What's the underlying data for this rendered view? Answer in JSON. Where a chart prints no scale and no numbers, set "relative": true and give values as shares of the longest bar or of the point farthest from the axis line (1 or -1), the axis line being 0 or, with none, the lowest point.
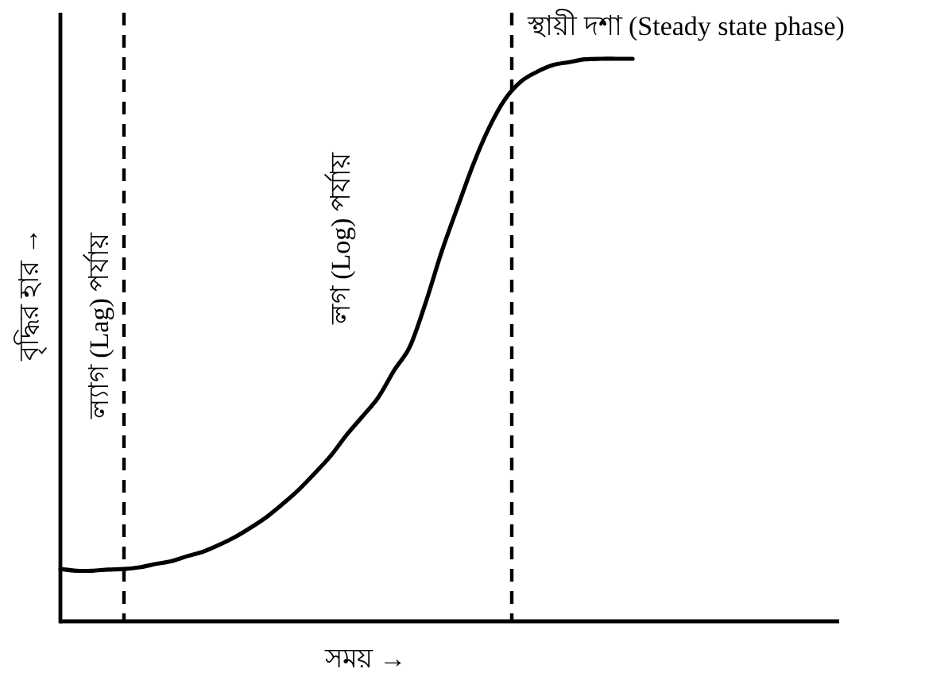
{
  "chart_data": {
    "type": "line",
    "relative": true,
    "xlabel": "সময় →",
    "ylabel": "বৃদ্ধির হার →",
    "categories": [
      null,
      null,
      null,
      null,
      null,
      null,
      null,
      null,
      null,
      null,
      null,
      null,
      null,
      null,
      null,
      null,
      null,
      null,
      null,
      null,
      null,
      null,
      null,
      null,
      null,
      null,
      null,
      null,
      null,
      null,
      null,
      null,
      null,
      null,
      null,
      null,
      null,
      null,
      null,
      null,
      null,
      null,
      null,
      null,
      null,
      null,
      null,
      null,
      null,
      null
    ],
    "values": [
      0.093,
      0.09,
      0.09,
      0.092,
      0.093,
      0.096,
      0.102,
      0.107,
      0.116,
      0.124,
      0.136,
      0.15,
      0.167,
      0.186,
      0.209,
      0.234,
      0.263,
      0.294,
      0.331,
      0.364,
      0.398,
      0.446,
      0.489,
      0.568,
      0.658,
      0.737,
      0.814,
      0.879,
      0.929,
      0.96,
      0.977,
      0.989,
      0.994,
      0.999,
      1,
      1,
      1,
      null,
      null,
      null,
      null,
      null,
      null,
      null,
      null,
      null,
      null,
      null,
      null,
      null
    ],
    "color": "#000000",
    "line_style": "solid",
    "marker": "none",
    "annotations": [
      "ল্যাগ (Lag) পর্যায়",
      "লগ (Log) পর্যায়",
      "স্থায়ী দশা (Steady state phase)"
    ]
  }
}
